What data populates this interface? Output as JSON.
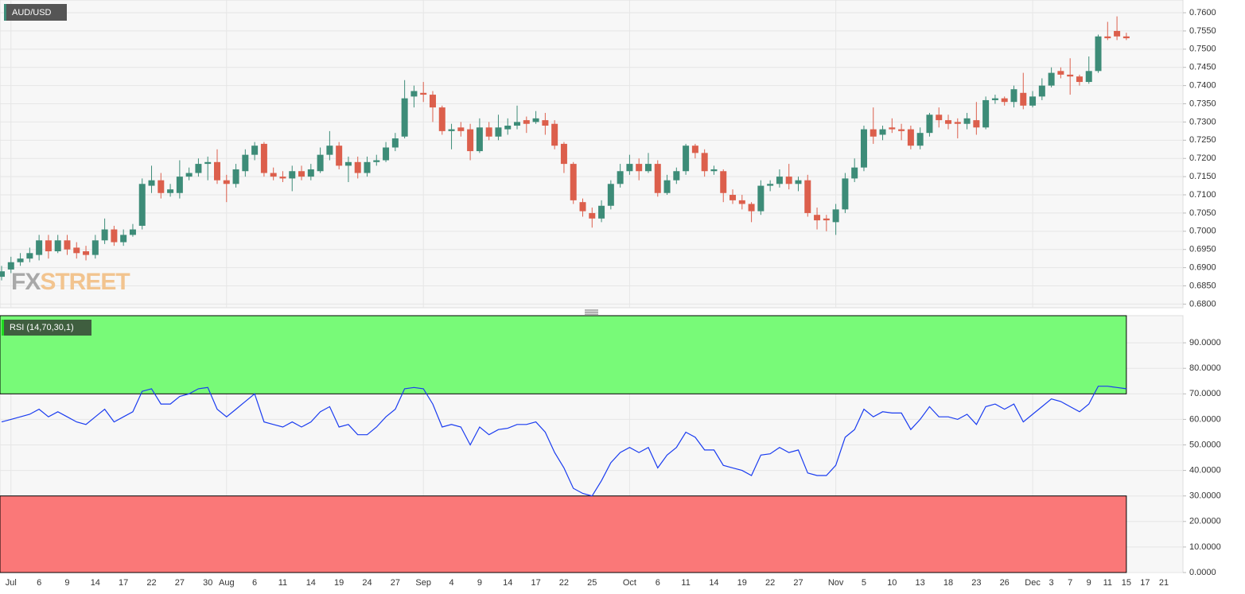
{
  "chart_data": [
    {
      "type": "candlestick",
      "title": "AUD/USD",
      "watermark": [
        "FX",
        "STREET"
      ],
      "categories": [
        null,
        "Jul",
        null,
        null,
        "6",
        null,
        null,
        "9",
        null,
        null,
        "14",
        null,
        null,
        "17",
        null,
        null,
        "22",
        null,
        null,
        "27",
        null,
        null,
        "30",
        null,
        "Aug",
        null,
        null,
        "6",
        null,
        null,
        "11",
        null,
        null,
        "14",
        null,
        null,
        "19",
        null,
        null,
        "24",
        null,
        null,
        "27",
        null,
        null,
        "Sep",
        null,
        null,
        "4",
        null,
        null,
        "9",
        null,
        null,
        "14",
        null,
        null,
        "17",
        null,
        null,
        "22",
        null,
        null,
        "25",
        null,
        null,
        null,
        "Oct",
        null,
        null,
        "6",
        null,
        null,
        "11",
        null,
        null,
        "14",
        null,
        null,
        "19",
        null,
        null,
        "22",
        null,
        null,
        "27",
        null,
        null,
        null,
        "Nov",
        null,
        null,
        "5",
        null,
        null,
        "10",
        null,
        null,
        "13",
        null,
        null,
        "18",
        null,
        null,
        "23",
        null,
        null,
        "26",
        null,
        null,
        "Dec",
        null,
        "3",
        null,
        "7",
        null,
        "9",
        null,
        "11",
        null,
        "15",
        null,
        "17",
        null,
        "21"
      ],
      "open": [
        0.6875,
        0.6895,
        0.6915,
        0.6925,
        0.6935,
        0.6975,
        0.6945,
        0.6975,
        0.6955,
        0.6945,
        0.6935,
        0.6975,
        0.7005,
        0.697,
        0.699,
        0.7015,
        0.7125,
        0.714,
        0.7105,
        0.7105,
        0.715,
        0.716,
        0.7185,
        0.719,
        0.714,
        0.713,
        0.7165,
        0.721,
        0.724,
        0.716,
        0.715,
        0.7145,
        0.7165,
        0.715,
        0.7165,
        0.721,
        0.7235,
        0.718,
        0.719,
        0.716,
        0.719,
        0.7195,
        0.723,
        0.726,
        0.737,
        0.738,
        0.7375,
        0.734,
        0.7275,
        0.7285,
        0.728,
        0.722,
        0.7285,
        0.726,
        0.728,
        0.729,
        0.7305,
        0.73,
        0.7305,
        0.7295,
        0.724,
        0.7185,
        0.708,
        0.705,
        0.7035,
        0.707,
        0.713,
        0.7165,
        0.7185,
        0.7165,
        0.7185,
        0.7105,
        0.714,
        0.7165,
        0.7235,
        0.7215,
        0.7165,
        0.7165,
        0.71,
        0.7085,
        0.7075,
        0.7055,
        0.7125,
        0.713,
        0.715,
        0.713,
        0.714,
        0.7045,
        0.7035,
        0.7025,
        0.706,
        0.7145,
        0.7175,
        0.728,
        0.7265,
        0.7285,
        0.728,
        0.728,
        0.7235,
        0.727,
        0.732,
        0.7305,
        0.73,
        0.7295,
        0.7305,
        0.7285,
        0.736,
        0.7365,
        0.7355,
        0.738,
        0.7345,
        0.737,
        0.74,
        0.744,
        0.743,
        0.7425,
        0.741,
        0.744,
        0.7535,
        0.755,
        0.7535,
        null,
        null,
        null,
        null
      ],
      "high": [
        0.6905,
        0.693,
        0.694,
        0.6955,
        0.699,
        0.699,
        0.699,
        0.699,
        0.697,
        0.696,
        0.699,
        0.7035,
        0.7015,
        0.7005,
        0.702,
        0.7145,
        0.718,
        0.716,
        0.713,
        0.7195,
        0.7175,
        0.72,
        0.7205,
        0.7225,
        0.7155,
        0.7185,
        0.7225,
        0.7245,
        0.7245,
        0.7175,
        0.7165,
        0.718,
        0.718,
        0.7185,
        0.723,
        0.7275,
        0.7245,
        0.7205,
        0.7205,
        0.7205,
        0.721,
        0.7245,
        0.727,
        0.7415,
        0.74,
        0.741,
        0.7385,
        0.7345,
        0.7295,
        0.73,
        0.7295,
        0.731,
        0.73,
        0.732,
        0.731,
        0.7345,
        0.7315,
        0.733,
        0.7325,
        0.7305,
        0.7245,
        0.719,
        0.709,
        0.7065,
        0.7085,
        0.714,
        0.7185,
        0.721,
        0.72,
        0.7215,
        0.7195,
        0.7155,
        0.7175,
        0.724,
        0.724,
        0.7225,
        0.718,
        0.717,
        0.7115,
        0.71,
        0.708,
        0.714,
        0.714,
        0.717,
        0.7185,
        0.715,
        0.7155,
        0.7065,
        0.7045,
        0.7075,
        0.716,
        0.72,
        0.729,
        0.734,
        0.729,
        0.731,
        0.7295,
        0.729,
        0.7285,
        0.7325,
        0.734,
        0.732,
        0.731,
        0.7325,
        0.7355,
        0.737,
        0.7375,
        0.737,
        0.74,
        0.7435,
        0.7385,
        0.742,
        0.745,
        0.745,
        0.7475,
        0.743,
        0.748,
        0.754,
        0.7575,
        0.759,
        0.7545,
        null,
        null,
        null,
        null
      ],
      "low": [
        0.6865,
        0.6885,
        0.6905,
        0.6915,
        0.692,
        0.6925,
        0.694,
        0.6935,
        0.6925,
        0.692,
        0.6925,
        0.6965,
        0.696,
        0.696,
        0.6985,
        0.7005,
        0.7105,
        0.709,
        0.7095,
        0.709,
        0.714,
        0.715,
        0.714,
        0.713,
        0.708,
        0.712,
        0.715,
        0.7195,
        0.715,
        0.714,
        0.7135,
        0.711,
        0.714,
        0.714,
        0.716,
        0.7195,
        0.717,
        0.7135,
        0.7145,
        0.715,
        0.718,
        0.719,
        0.722,
        0.7255,
        0.734,
        0.7355,
        0.73,
        0.7265,
        0.7225,
        0.726,
        0.7195,
        0.7215,
        0.725,
        0.725,
        0.7265,
        0.728,
        0.727,
        0.7295,
        0.7265,
        0.7225,
        0.716,
        0.7075,
        0.704,
        0.701,
        0.7025,
        0.706,
        0.712,
        0.7155,
        0.714,
        0.716,
        0.7095,
        0.71,
        0.713,
        0.7155,
        0.72,
        0.715,
        0.7155,
        0.708,
        0.7075,
        0.706,
        0.7025,
        0.7045,
        0.711,
        0.712,
        0.7115,
        0.711,
        0.704,
        0.7005,
        0.7,
        0.699,
        0.705,
        0.7135,
        0.7165,
        0.724,
        0.725,
        0.727,
        0.725,
        0.7225,
        0.7225,
        0.726,
        0.7285,
        0.728,
        0.7255,
        0.728,
        0.7265,
        0.728,
        0.735,
        0.7345,
        0.734,
        0.7335,
        0.734,
        0.736,
        0.7395,
        0.742,
        0.7375,
        0.74,
        0.7405,
        0.7435,
        0.7525,
        0.7525,
        0.7525,
        null,
        null,
        null,
        null
      ],
      "close": [
        0.689,
        0.6915,
        0.6925,
        0.694,
        0.6975,
        0.6945,
        0.6975,
        0.695,
        0.694,
        0.6935,
        0.6975,
        0.7005,
        0.697,
        0.699,
        0.7005,
        0.713,
        0.714,
        0.7105,
        0.7115,
        0.715,
        0.716,
        0.7185,
        0.719,
        0.714,
        0.713,
        0.717,
        0.721,
        0.7235,
        0.716,
        0.715,
        0.7145,
        0.7165,
        0.715,
        0.717,
        0.721,
        0.7235,
        0.718,
        0.719,
        0.716,
        0.719,
        0.7195,
        0.723,
        0.7255,
        0.7365,
        0.7385,
        0.7375,
        0.734,
        0.7275,
        0.728,
        0.7275,
        0.722,
        0.7285,
        0.726,
        0.7285,
        0.729,
        0.73,
        0.7295,
        0.731,
        0.729,
        0.7235,
        0.7185,
        0.7085,
        0.7055,
        0.7035,
        0.707,
        0.713,
        0.7165,
        0.7185,
        0.7165,
        0.7185,
        0.7105,
        0.714,
        0.7165,
        0.7235,
        0.7215,
        0.7165,
        0.717,
        0.7105,
        0.7085,
        0.7075,
        0.7055,
        0.7125,
        0.713,
        0.715,
        0.713,
        0.714,
        0.705,
        0.703,
        0.703,
        0.706,
        0.7145,
        0.7175,
        0.728,
        0.726,
        0.728,
        0.728,
        0.7275,
        0.7235,
        0.727,
        0.732,
        0.7305,
        0.7295,
        0.7295,
        0.731,
        0.7285,
        0.736,
        0.7365,
        0.7355,
        0.739,
        0.7345,
        0.737,
        0.74,
        0.7435,
        0.743,
        0.7425,
        0.741,
        0.744,
        0.7535,
        0.753,
        0.7535,
        0.753,
        null,
        null,
        null,
        null
      ],
      "up_color": "#3d8c78",
      "down_color": "#dc5f4c",
      "ylim": [
        0.679,
        0.7635
      ],
      "yticks": [
        {
          "value": 0.68,
          "label": "0.6800"
        },
        {
          "value": 0.685,
          "label": "0.6850"
        },
        {
          "value": 0.69,
          "label": "0.6900"
        },
        {
          "value": 0.695,
          "label": "0.6950"
        },
        {
          "value": 0.7,
          "label": "0.7000"
        },
        {
          "value": 0.705,
          "label": "0.7050"
        },
        {
          "value": 0.71,
          "label": "0.7100"
        },
        {
          "value": 0.715,
          "label": "0.7150"
        },
        {
          "value": 0.72,
          "label": "0.7200"
        },
        {
          "value": 0.725,
          "label": "0.7250"
        },
        {
          "value": 0.73,
          "label": "0.7300"
        },
        {
          "value": 0.735,
          "label": "0.7350"
        },
        {
          "value": 0.74,
          "label": "0.7400"
        },
        {
          "value": 0.745,
          "label": "0.7450"
        },
        {
          "value": 0.75,
          "label": "0.7500"
        },
        {
          "value": 0.755,
          "label": "0.7550"
        },
        {
          "value": 0.76,
          "label": "0.7600"
        }
      ],
      "grid": true
    },
    {
      "type": "line",
      "title": "RSI (14,70,30,1)",
      "values": [
        59,
        60,
        61,
        62,
        64,
        61,
        63,
        61,
        59,
        58,
        61,
        64,
        59,
        61,
        63,
        71,
        72,
        66,
        66,
        69,
        70,
        72,
        72.5,
        64,
        61,
        64,
        67,
        70,
        59,
        58,
        57,
        59,
        57,
        59,
        63,
        65,
        57,
        58,
        54,
        54,
        57,
        61,
        64,
        72,
        72.5,
        72,
        66,
        57,
        58,
        57,
        50,
        57,
        54,
        56,
        56.5,
        58,
        58,
        59,
        55,
        47,
        41,
        33,
        31,
        30,
        36,
        43,
        47,
        49,
        47,
        49,
        41,
        46,
        49,
        55,
        53,
        48,
        48,
        42,
        41,
        40,
        38,
        46,
        46.5,
        49,
        47,
        48,
        39,
        38,
        38,
        42,
        53,
        56,
        64,
        61,
        63,
        62.5,
        62.5,
        56,
        60,
        65,
        61,
        61,
        60,
        62,
        58,
        65,
        66,
        64,
        66,
        59,
        62,
        65,
        68,
        67,
        65,
        63,
        66,
        73,
        73,
        72.5,
        72,
        null,
        null,
        null,
        null
      ],
      "color": "#1a3cf0",
      "overbought": {
        "level": 70,
        "color": "#78fa78"
      },
      "oversold": {
        "level": 30,
        "color": "#fa7878"
      },
      "ylim": [
        0,
        100
      ],
      "yticks": [
        {
          "value": 0,
          "label": "0.0000"
        },
        {
          "value": 10,
          "label": "10.0000"
        },
        {
          "value": 20,
          "label": "20.0000"
        },
        {
          "value": 30,
          "label": "30.0000"
        },
        {
          "value": 40,
          "label": "40.0000"
        },
        {
          "value": 50,
          "label": "50.0000"
        },
        {
          "value": 60,
          "label": "60.0000"
        },
        {
          "value": 70,
          "label": "70.0000"
        },
        {
          "value": 80,
          "label": "80.0000"
        },
        {
          "value": 90,
          "label": "90.0000"
        }
      ],
      "grid": true
    }
  ]
}
